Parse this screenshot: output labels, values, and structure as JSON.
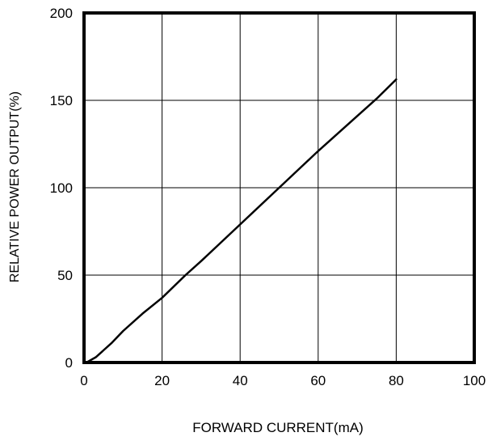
{
  "chart_data": {
    "type": "line",
    "title": "",
    "xlabel": "FORWARD CURRENT(mA)",
    "ylabel": "RELATIVE POWER OUTPUT(%)",
    "xlim": [
      0,
      100
    ],
    "ylim": [
      0,
      200
    ],
    "x_ticks": [
      0,
      20,
      40,
      60,
      80,
      100
    ],
    "y_ticks": [
      0,
      50,
      100,
      150,
      200
    ],
    "x_tick_labels": [
      "0",
      "20",
      "40",
      "60",
      "80",
      "100"
    ],
    "y_tick_labels": [
      "0",
      "50",
      "100",
      "150",
      "200"
    ],
    "grid": true,
    "series": [
      {
        "points": [
          [
            1,
            0.5
          ],
          [
            3,
            3
          ],
          [
            5,
            7
          ],
          [
            7,
            11
          ],
          [
            10,
            18
          ],
          [
            15,
            28
          ],
          [
            20,
            37
          ],
          [
            26,
            50
          ],
          [
            30,
            58
          ],
          [
            40,
            79
          ],
          [
            50,
            100
          ],
          [
            60,
            121
          ],
          [
            70,
            141
          ],
          [
            75,
            151
          ],
          [
            80,
            162
          ]
        ]
      }
    ],
    "colors": {
      "line": "#000000",
      "grid": "#000000",
      "frame": "#000000"
    }
  }
}
